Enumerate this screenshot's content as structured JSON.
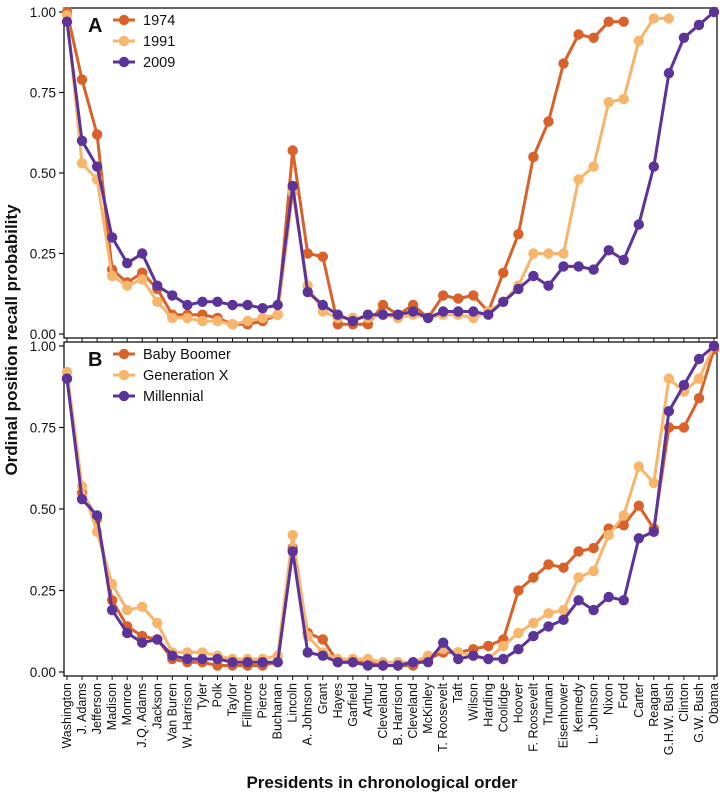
{
  "chart_data": {
    "type": "line",
    "xlabel": "Presidents in chronological order",
    "ylabel": "Ordinal position recall probability",
    "ylim": [
      0,
      1
    ],
    "yticks": [
      "0.00",
      "0.25",
      "0.50",
      "0.75",
      "1.00"
    ],
    "categories": [
      "Washington",
      "J. Adams",
      "Jefferson",
      "Madison",
      "Monroe",
      "J.Q. Adams",
      "Jackson",
      "Van Buren",
      "W. Harrison",
      "Tyler",
      "Polk",
      "Taylor",
      "Fillmore",
      "Pierce",
      "Buchanan",
      "Lincoln",
      "A. Johnson",
      "Grant",
      "Hayes",
      "Garfield",
      "Arthur",
      "Cleveland",
      "B. Harrison",
      "Cleveland",
      "McKinley",
      "T. Roosevelt",
      "Taft",
      "Wilson",
      "Harding",
      "Coolidge",
      "Hoover",
      "F. Roosevelt",
      "Truman",
      "Eisenhower",
      "Kennedy",
      "L. Johnson",
      "Nixon",
      "Ford",
      "Carter",
      "Reagan",
      "G.H.W. Bush",
      "Clinton",
      "G.W. Bush",
      "Obama"
    ],
    "panels": [
      {
        "letter": "A",
        "series": [
          {
            "name": "1974",
            "color": "#d8622a",
            "values": [
              1.0,
              0.79,
              0.62,
              0.2,
              0.16,
              0.19,
              0.14,
              0.06,
              0.06,
              0.06,
              0.05,
              0.03,
              0.03,
              0.04,
              0.06,
              0.57,
              0.25,
              0.24,
              0.03,
              0.03,
              0.03,
              0.09,
              0.06,
              0.09,
              0.05,
              0.12,
              0.11,
              0.12,
              0.07,
              0.19,
              0.31,
              0.55,
              0.66,
              0.84,
              0.93,
              0.92,
              0.97,
              0.97,
              null,
              null,
              null,
              null,
              null,
              null
            ]
          },
          {
            "name": "1991",
            "color": "#f8b56c",
            "values": [
              0.99,
              0.53,
              0.48,
              0.18,
              0.15,
              0.17,
              0.1,
              0.05,
              0.05,
              0.04,
              0.04,
              0.03,
              0.04,
              0.05,
              0.06,
              0.44,
              0.15,
              0.07,
              0.05,
              0.05,
              0.05,
              0.06,
              0.05,
              0.06,
              0.05,
              0.06,
              0.06,
              0.05,
              0.07,
              0.1,
              0.15,
              0.25,
              0.25,
              0.25,
              0.48,
              0.52,
              0.72,
              0.73,
              0.91,
              0.98,
              0.98,
              null,
              null,
              null
            ]
          },
          {
            "name": "2009",
            "color": "#5c3399",
            "values": [
              0.97,
              0.6,
              0.52,
              0.3,
              0.22,
              0.25,
              0.15,
              0.12,
              0.09,
              0.1,
              0.1,
              0.09,
              0.09,
              0.08,
              0.09,
              0.46,
              0.13,
              0.09,
              0.06,
              0.04,
              0.06,
              0.06,
              0.06,
              0.07,
              0.05,
              0.07,
              0.07,
              0.07,
              0.06,
              0.1,
              0.14,
              0.18,
              0.15,
              0.21,
              0.21,
              0.2,
              0.26,
              0.23,
              0.34,
              0.52,
              0.81,
              0.92,
              0.96,
              1.0
            ]
          }
        ]
      },
      {
        "letter": "B",
        "series": [
          {
            "name": "Baby Boomer",
            "color": "#d8622a",
            "values": [
              0.9,
              0.55,
              0.47,
              0.22,
              0.14,
              0.11,
              0.1,
              0.04,
              0.03,
              0.03,
              0.02,
              0.02,
              0.02,
              0.02,
              0.03,
              0.38,
              0.12,
              0.1,
              0.03,
              0.03,
              0.03,
              0.02,
              0.02,
              0.02,
              0.04,
              0.06,
              0.06,
              0.07,
              0.08,
              0.1,
              0.25,
              0.29,
              0.33,
              0.32,
              0.37,
              0.38,
              0.44,
              0.45,
              0.51,
              0.44,
              0.75,
              0.75,
              0.84,
              0.99
            ]
          },
          {
            "name": "Generation X",
            "color": "#f8b56c",
            "values": [
              0.92,
              0.57,
              0.43,
              0.27,
              0.19,
              0.2,
              0.15,
              0.06,
              0.06,
              0.06,
              0.05,
              0.04,
              0.04,
              0.04,
              0.05,
              0.42,
              0.11,
              0.06,
              0.04,
              0.04,
              0.04,
              0.03,
              0.03,
              0.03,
              0.05,
              0.07,
              0.06,
              0.05,
              0.04,
              0.08,
              0.12,
              0.15,
              0.18,
              0.19,
              0.29,
              0.31,
              0.42,
              0.48,
              0.63,
              0.58,
              0.9,
              0.86,
              0.9,
              1.0
            ]
          },
          {
            "name": "Millennial",
            "color": "#5c3399",
            "values": [
              0.9,
              0.53,
              0.48,
              0.19,
              0.12,
              0.09,
              0.1,
              0.05,
              0.04,
              0.04,
              0.04,
              0.03,
              0.03,
              0.03,
              0.03,
              0.37,
              0.06,
              0.05,
              0.03,
              0.03,
              0.02,
              0.02,
              0.02,
              0.03,
              0.03,
              0.09,
              0.04,
              0.05,
              0.04,
              0.04,
              0.07,
              0.11,
              0.14,
              0.16,
              0.22,
              0.19,
              0.23,
              0.22,
              0.41,
              0.43,
              0.8,
              0.88,
              0.96,
              1.0
            ]
          }
        ]
      }
    ]
  }
}
